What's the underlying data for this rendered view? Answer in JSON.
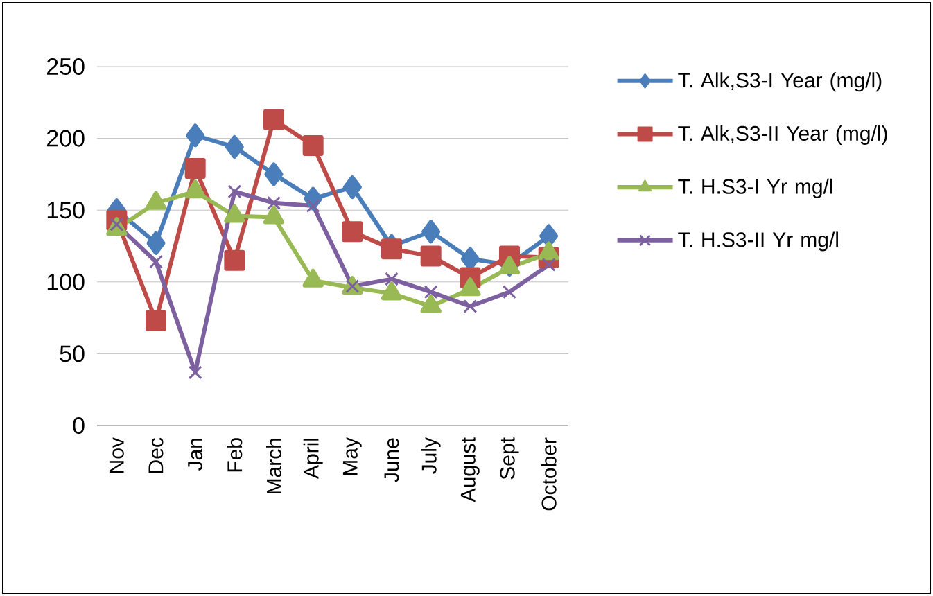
{
  "chart_data": {
    "type": "line",
    "categories": [
      "Nov",
      "Dec",
      "Jan",
      "Feb",
      "March",
      "April",
      "May",
      "June",
      "July",
      "August",
      "Sept",
      "October"
    ],
    "series": [
      {
        "name": "T. Alk,S3-I Year (mg/l)",
        "color": "#4a7ebb",
        "marker": "diamond",
        "values": [
          150,
          127,
          202,
          194,
          175,
          158,
          166,
          125,
          135,
          116,
          112,
          132
        ]
      },
      {
        "name": "T. Alk,S3-II Year (mg/l)",
        "color": "#be4b48",
        "marker": "square",
        "values": [
          143,
          73,
          179,
          115,
          213,
          195,
          135,
          123,
          118,
          103,
          118,
          117
        ]
      },
      {
        "name": "T. H.S3-I Yr mg/l",
        "color": "#98b954",
        "marker": "triangle",
        "values": [
          137,
          155,
          163,
          146,
          145,
          101,
          96,
          92,
          83,
          95,
          110,
          120
        ]
      },
      {
        "name": "T. H.S3-II Yr mg/l",
        "color": "#7d60a0",
        "marker": "cross",
        "values": [
          140,
          114,
          37,
          163,
          155,
          153,
          97,
          102,
          93,
          83,
          93,
          112
        ]
      }
    ],
    "ylim": [
      0,
      250
    ],
    "yticks": [
      0,
      50,
      100,
      150,
      200,
      250
    ],
    "grid": "y",
    "legend": "right"
  }
}
